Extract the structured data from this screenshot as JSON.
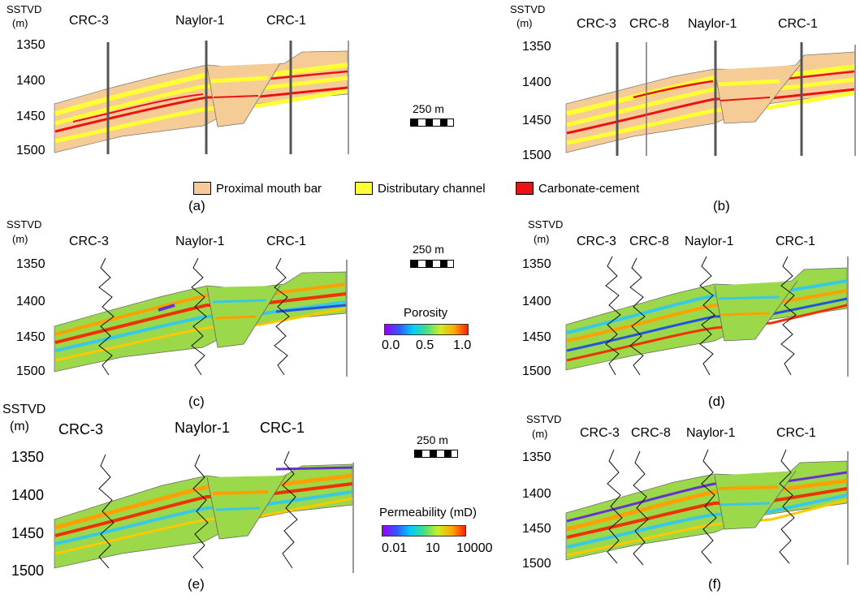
{
  "depth_axis": {
    "title": "SSTVD",
    "unit": "(m)",
    "ticks": [
      "1350",
      "1400",
      "1450",
      "1500"
    ]
  },
  "panels": [
    {
      "id": "a",
      "caption": "(a)",
      "type": "facies",
      "wells": [
        "CRC-3",
        "Naylor-1",
        "CRC-1"
      ]
    },
    {
      "id": "b",
      "caption": "(b)",
      "type": "facies",
      "wells": [
        "CRC-3",
        "CRC-8",
        "Naylor-1",
        "CRC-1"
      ]
    },
    {
      "id": "c",
      "caption": "(c)",
      "type": "porosity",
      "wells": [
        "CRC-3",
        "Naylor-1",
        "CRC-1"
      ]
    },
    {
      "id": "d",
      "caption": "(d)",
      "type": "porosity",
      "wells": [
        "CRC-3",
        "CRC-8",
        "Naylor-1",
        "CRC-1"
      ]
    },
    {
      "id": "e",
      "caption": "(e)",
      "type": "permeability",
      "wells": [
        "CRC-3",
        "Naylor-1",
        "CRC-1"
      ]
    },
    {
      "id": "f",
      "caption": "(f)",
      "type": "permeability",
      "wells": [
        "CRC-3",
        "CRC-8",
        "Naylor-1",
        "CRC-1"
      ]
    }
  ],
  "scale_bar": {
    "label": "250 m"
  },
  "facies_legend": [
    {
      "label": "Proximal mouth bar",
      "color": "#f6cc96"
    },
    {
      "label": "Distributary channel",
      "color": "#ffff33"
    },
    {
      "label": "Carbonate-cement",
      "color": "#ee1111"
    }
  ],
  "porosity_colorbar": {
    "title": "Porosity",
    "ticks": [
      "0.0",
      "0.5",
      "1.0"
    ]
  },
  "permeability_colorbar": {
    "title": "Permeability (mD)",
    "ticks": [
      "0.01",
      "10",
      "10000"
    ]
  },
  "colors": {
    "facies_base": "#f6cc96",
    "channel": "#ffff33",
    "cement": "#ee1111",
    "prop_green": "#9bd84a"
  }
}
